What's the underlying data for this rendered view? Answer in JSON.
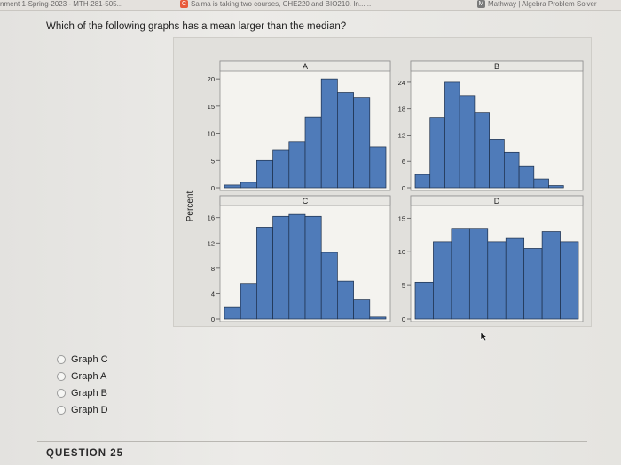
{
  "browser": {
    "tabs": [
      {
        "label": "nment 1-Spring-2023 - MTH-281-505...",
        "icon": ""
      },
      {
        "label": "Salma is taking two courses, CHE220 and BIO210. In......",
        "icon": "C",
        "icon_color": "#e85a3a"
      },
      {
        "label": "Mathway | Algebra Problem Solver",
        "icon": "M",
        "icon_color": "#7a7a7a"
      }
    ]
  },
  "question": {
    "text": "Which of the following graphs has a mean larger than the median?"
  },
  "figure": {
    "y_axis_label": "Percent",
    "bar_color": "#4f7bb9",
    "edge_color": "#1d2f4a"
  },
  "chart_data": [
    {
      "type": "bar",
      "title": "A",
      "values": [
        0.5,
        1,
        5,
        7,
        8.5,
        13,
        20,
        17.5,
        16.5,
        7.5
      ],
      "ylim": [
        0,
        21
      ],
      "yticks": [
        0,
        5,
        10,
        15,
        20
      ]
    },
    {
      "type": "bar",
      "title": "B",
      "values": [
        3,
        16,
        24,
        21,
        17,
        11,
        8,
        5,
        2,
        0.5,
        0
      ],
      "ylim": [
        0,
        26
      ],
      "yticks": [
        0,
        6,
        12,
        18,
        24
      ]
    },
    {
      "type": "bar",
      "title": "C",
      "values": [
        1.8,
        5.5,
        14.5,
        16.2,
        16.5,
        16.2,
        10.5,
        6,
        3,
        0.3
      ],
      "ylim": [
        0,
        17.5
      ],
      "yticks": [
        0,
        4,
        8,
        12,
        16
      ]
    },
    {
      "type": "bar",
      "title": "D",
      "values": [
        5.5,
        11.5,
        13.5,
        13.5,
        11.5,
        12,
        10.5,
        13,
        11.5
      ],
      "ylim": [
        0,
        16.5
      ],
      "yticks": [
        0,
        5,
        10,
        15
      ]
    }
  ],
  "options": [
    {
      "label": "Graph C"
    },
    {
      "label": "Graph A"
    },
    {
      "label": "Graph B"
    },
    {
      "label": "Graph D"
    }
  ],
  "question_number": "QUESTION 25"
}
